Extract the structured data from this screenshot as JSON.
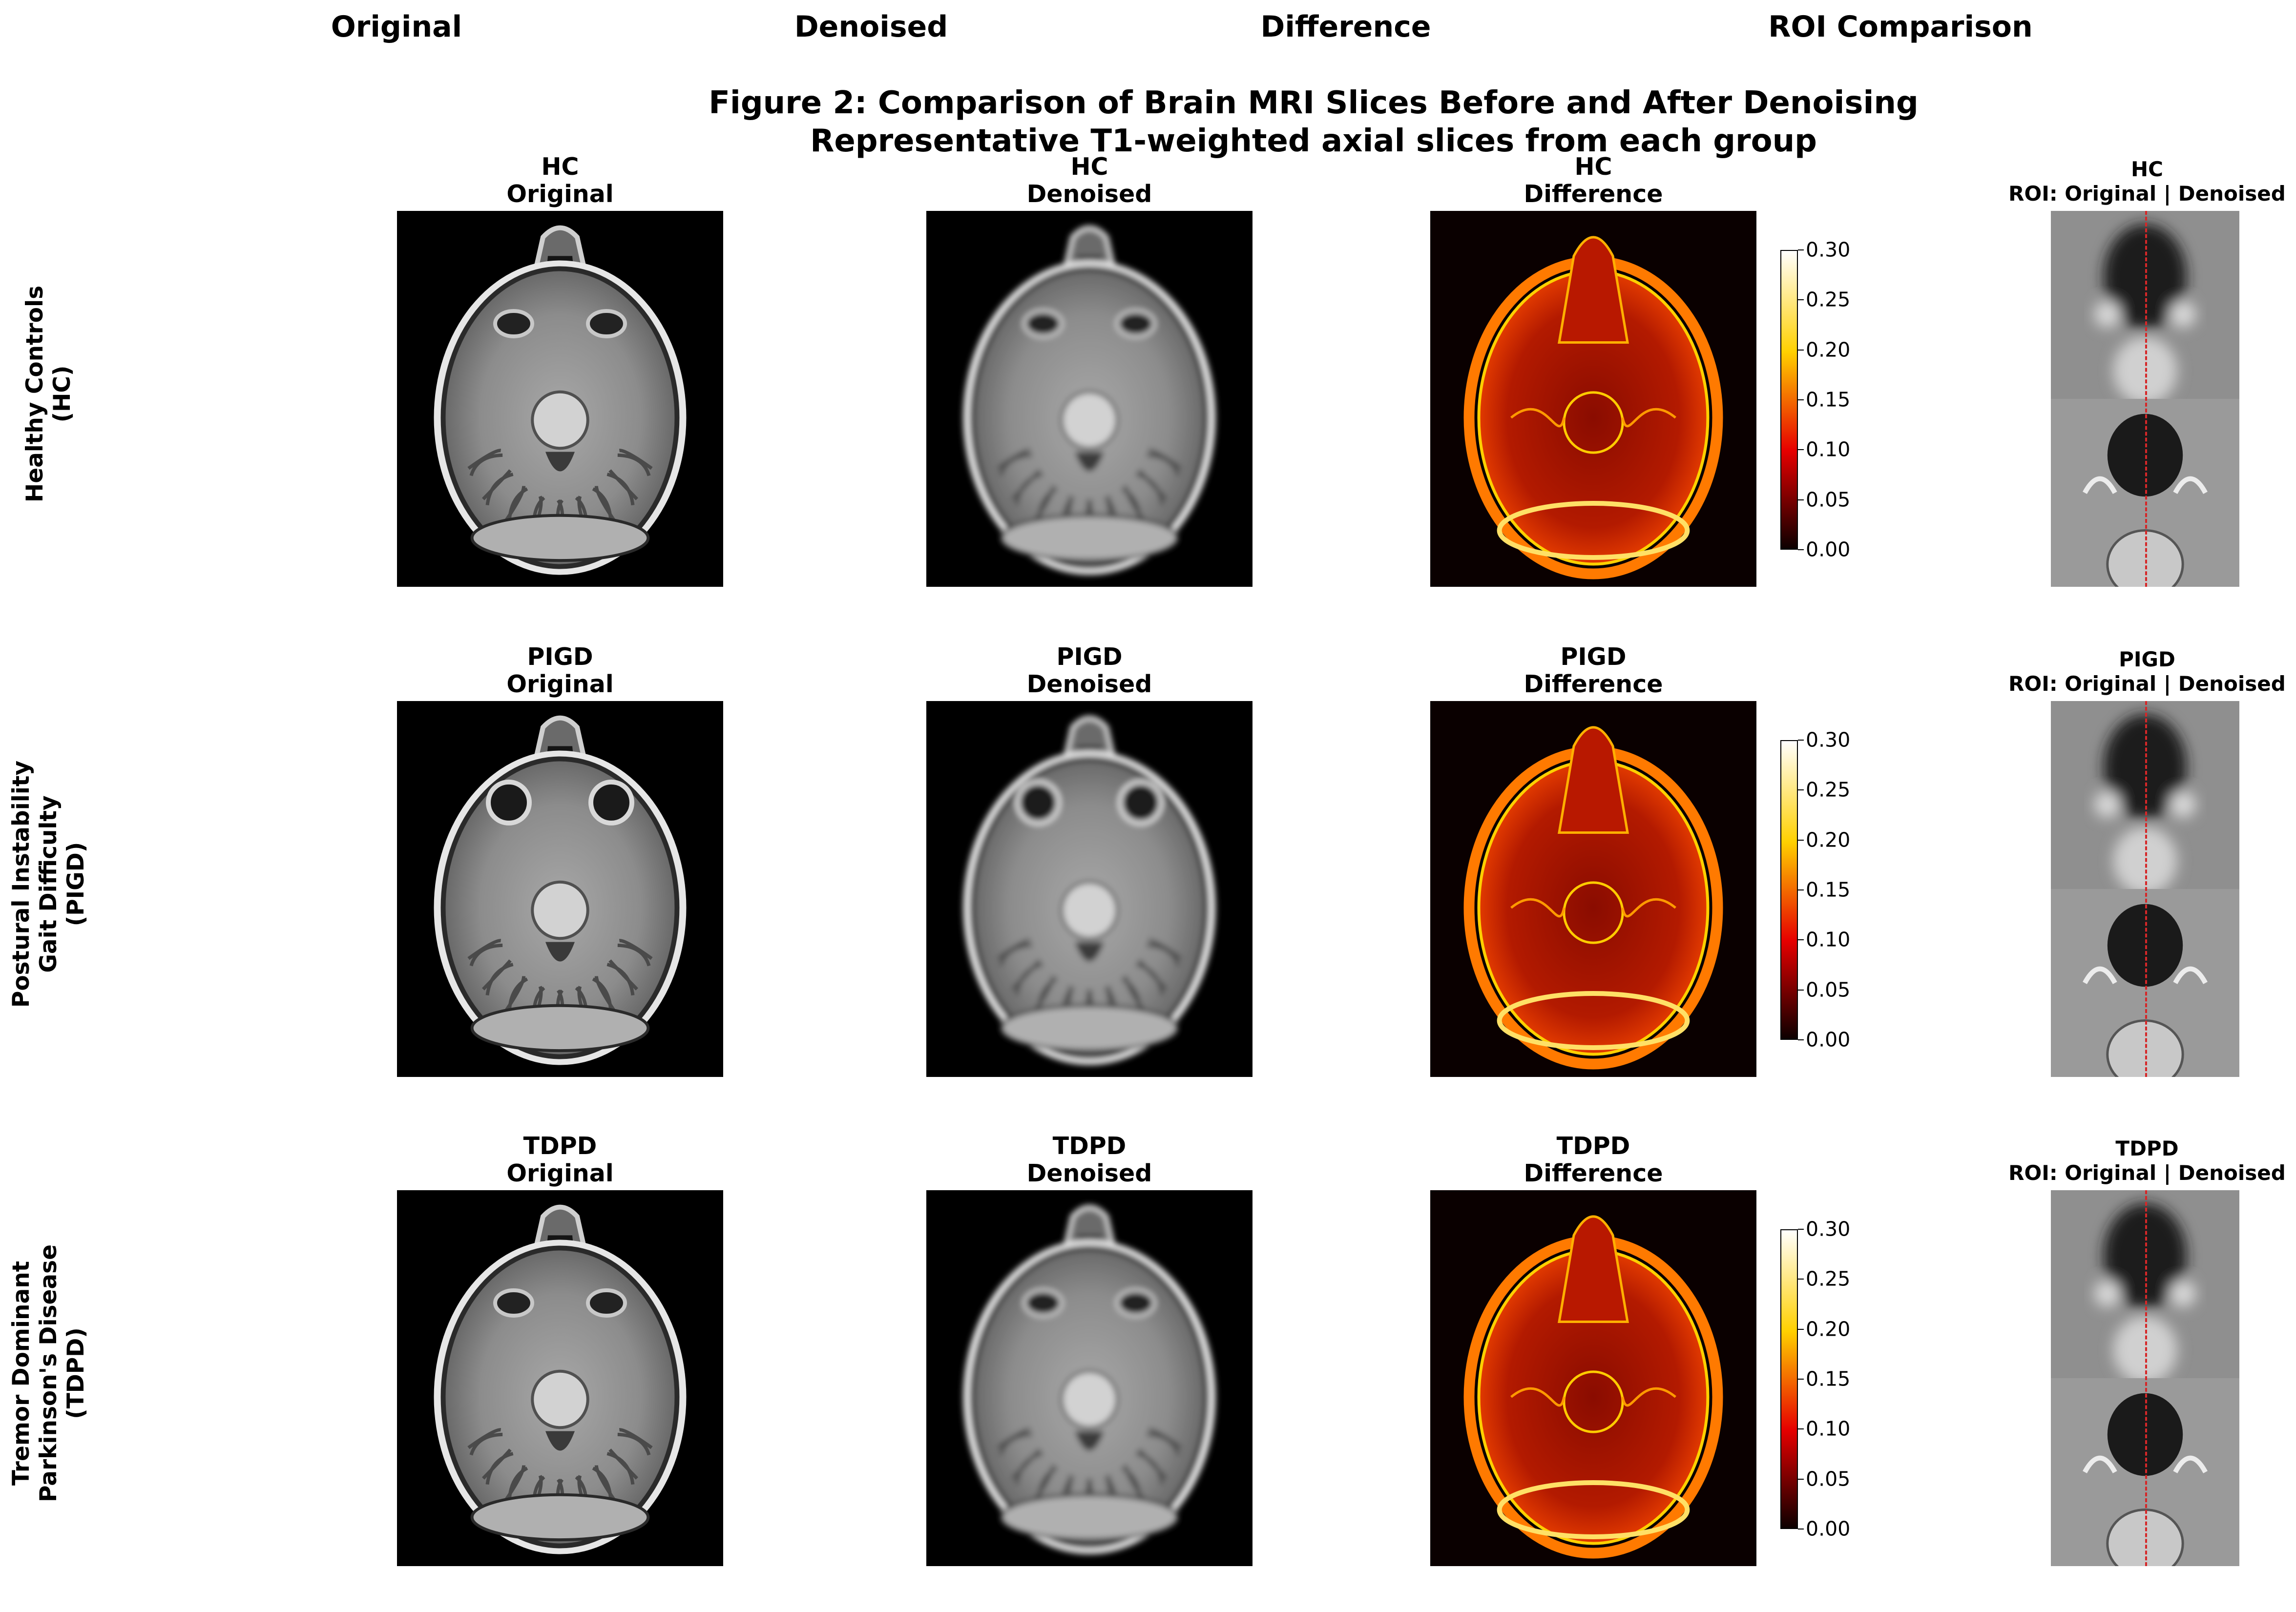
{
  "column_headers": [
    "Original",
    "Denoised",
    "Difference",
    "ROI Comparison"
  ],
  "figure_title": {
    "line1": "Figure 2: Comparison of Brain MRI Slices Before and After Denoising",
    "line2": "Representative T1-weighted axial slices from each group"
  },
  "rows": [
    {
      "group": "HC",
      "label_lines": [
        "Healthy Controls",
        "(HC)"
      ],
      "original_title": [
        "HC",
        "Original"
      ],
      "denoised_title": [
        "HC",
        "Denoised"
      ],
      "difference_title": [
        "HC",
        "Difference"
      ],
      "roi_title": [
        "HC",
        "ROI: Original | Denoised"
      ]
    },
    {
      "group": "PIGD",
      "label_lines": [
        "Postural Instability",
        "Gait Difficulty",
        "(PIGD)"
      ],
      "original_title": [
        "PIGD",
        "Original"
      ],
      "denoised_title": [
        "PIGD",
        "Denoised"
      ],
      "difference_title": [
        "PIGD",
        "Difference"
      ],
      "roi_title": [
        "PIGD",
        "ROI: Original | Denoised"
      ]
    },
    {
      "group": "TDPD",
      "label_lines": [
        "Tremor Dominant",
        "Parkinson's Disease",
        "(TDPD)"
      ],
      "original_title": [
        "TDPD",
        "Original"
      ],
      "denoised_title": [
        "TDPD",
        "Denoised"
      ],
      "difference_title": [
        "TDPD",
        "Difference"
      ],
      "roi_title": [
        "TDPD",
        "ROI: Original | Denoised"
      ]
    }
  ],
  "colorbar": {
    "ticks": [
      "0.30",
      "0.25",
      "0.20",
      "0.15",
      "0.10",
      "0.05",
      "0.00"
    ],
    "range": [
      0.0,
      0.3
    ],
    "colormap": "hot"
  },
  "colors": {
    "background": "#ffffff",
    "roi_divider": "#d62728"
  }
}
